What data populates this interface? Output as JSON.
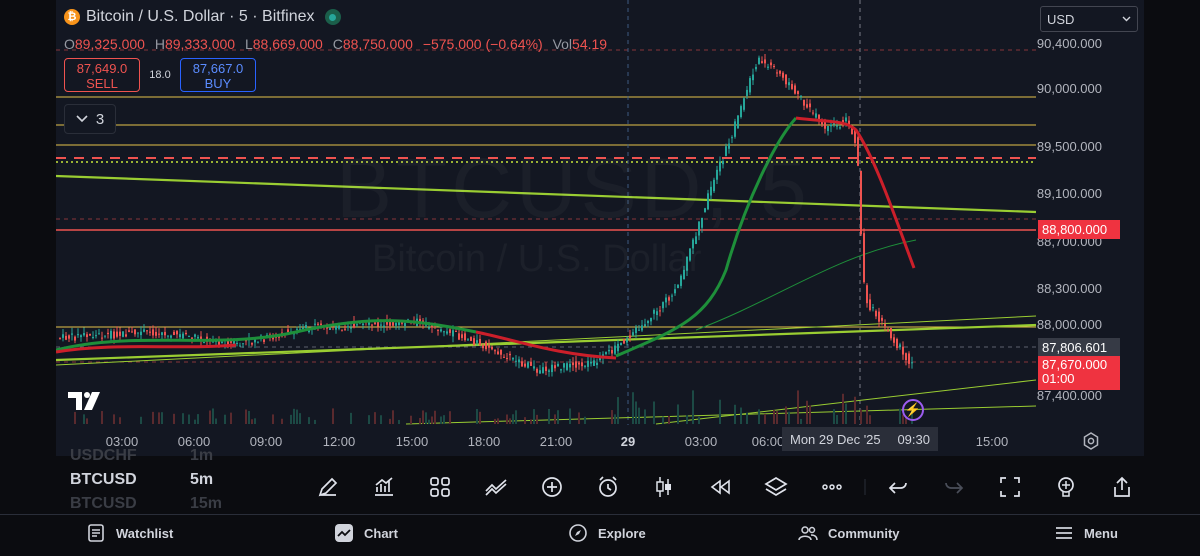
{
  "header": {
    "symbol_title": "Bitcoin / U.S. Dollar · 5 · Bitfinex",
    "btc_glyph": "₿"
  },
  "ohlc": {
    "o_label": "O",
    "o": "89,325.000",
    "h_label": "H",
    "h": "89,333.000",
    "l_label": "L",
    "l": "88,669.000",
    "c_label": "C",
    "c": "88,750.000",
    "change": "−575.000 (−0.64%)",
    "vol_label": "Vol",
    "vol": "54.19"
  },
  "trade": {
    "sell_price": "87,649.0",
    "sell_label": "SELL",
    "spread": "18.0",
    "buy_price": "87,667.0",
    "buy_label": "BUY"
  },
  "indicator_toggle": {
    "count": "3"
  },
  "currency_select": {
    "value": "USD"
  },
  "price_axis": {
    "ticks": [
      "90,400.000",
      "90,000.000",
      "89,500.000",
      "89,100.000",
      "88,700.000",
      "88,300.000",
      "88,000.000",
      "87,400.000"
    ],
    "flag_red": "88,800.000",
    "flag_crosshair": "87,806.601",
    "flag_last_price": "87,670.000",
    "flag_countdown": "01:00"
  },
  "time_axis": {
    "ticks": [
      "03:00",
      "06:00",
      "09:00",
      "12:00",
      "15:00",
      "18:00",
      "21:00",
      "29",
      "03:00",
      "06:00",
      "15:00"
    ],
    "crosshair_date": "Mon 29 Dec '25",
    "crosshair_time": "09:30"
  },
  "watermark": {
    "symbol": "BTCUSD, 5",
    "name": "Bitcoin / U.S. Dollar"
  },
  "symbol_list": {
    "rows": [
      {
        "symbol": "USDCHF",
        "interval": "1m"
      },
      {
        "symbol": "BTCUSD",
        "interval": "5m"
      },
      {
        "symbol": "BTCUSD",
        "interval": "15m"
      }
    ]
  },
  "toolbar": {
    "icons": [
      "drawing-pen-icon",
      "indicators-icon",
      "templates-icon",
      "compare-icon",
      "add-icon",
      "alert-clock-icon",
      "candle-type-icon",
      "replay-icon",
      "layers-icon",
      "more-icon",
      "undo-icon",
      "redo-icon",
      "fullscreen-icon",
      "ideas-bulb-icon",
      "share-icon"
    ]
  },
  "bottom_nav": {
    "watchlist": "Watchlist",
    "chart": "Chart",
    "explore": "Explore",
    "community": "Community",
    "menu": "Menu"
  },
  "colors": {
    "background": "#131722",
    "up": "#26a69a",
    "down": "#ef5350",
    "ma_fast_up": "#1e8f3a",
    "ma_fast_down": "#cc1f2a",
    "trendline": "#9acd32",
    "level_yellow": "#e6c34a",
    "accent_blue": "#2962ff",
    "lightning": "#9c5cf0"
  }
}
